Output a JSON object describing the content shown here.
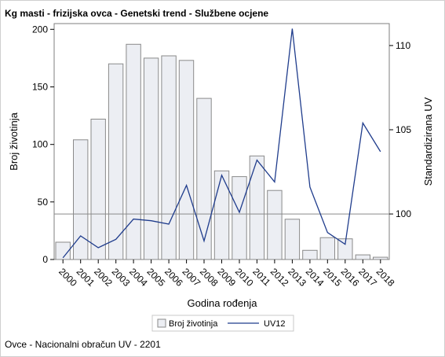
{
  "title": "Kg masti - frizijska ovca - Genetski trend - Službene ocjene",
  "footnote": "Ovce - Nacionalni obračun UV - 2201",
  "chart_data": {
    "type": "bar",
    "title": "Kg masti - frizijska ovca - Genetski trend - Službene ocjene",
    "xlabel": "Godina rođenja",
    "ylabel": "Broj životinja",
    "y2label": "Standardizirana UV",
    "categories": [
      "2000",
      "2001",
      "2002",
      "2003",
      "2004",
      "2005",
      "2006",
      "2007",
      "2008",
      "2009",
      "2010",
      "2011",
      "2012",
      "2013",
      "2014",
      "2015",
      "2016",
      "2017",
      "2018"
    ],
    "ylim": [
      0,
      205
    ],
    "y_ticks": [
      0,
      50,
      100,
      150,
      200
    ],
    "y2lim": [
      97.3,
      111.3
    ],
    "y2_ticks": [
      100,
      105,
      110
    ],
    "reference_line_y2": 100,
    "grid": false,
    "legend_position": "bottom",
    "series": [
      {
        "name": "Broj životinja",
        "type": "bar",
        "axis": "left",
        "color": "#eceef3",
        "values": [
          15,
          104,
          122,
          170,
          187,
          175,
          177,
          173,
          140,
          77,
          72,
          90,
          60,
          35,
          8,
          19,
          18,
          4,
          2
        ]
      },
      {
        "name": "UV12",
        "type": "line",
        "axis": "right",
        "color": "#1f3c8c",
        "values": [
          97.4,
          98.7,
          98.0,
          98.5,
          99.7,
          99.6,
          99.4,
          101.7,
          98.4,
          102.3,
          100.1,
          103.2,
          101.9,
          111.0,
          101.6,
          98.9,
          98.2,
          105.4,
          103.7
        ]
      }
    ]
  }
}
